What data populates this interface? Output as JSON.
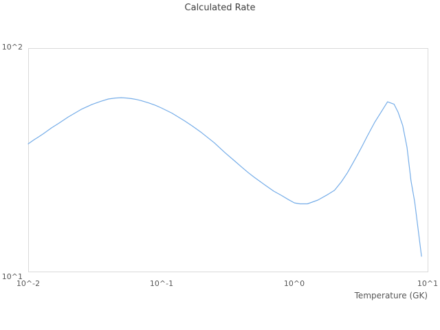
{
  "figure": {
    "title": "Calculated Rate"
  },
  "axes": {
    "x_label": "Temperature (GK)",
    "x_tick_labels": [
      "10^-2",
      "10^-1",
      "10^0",
      "10^1"
    ],
    "y_tick_labels": [
      "10^1",
      "10^2"
    ]
  },
  "colors": {
    "line": "#74ace8",
    "plot_border": "#d9d9d9",
    "tick_text": "#555555",
    "title_text": "#3d3d3d",
    "background": "#ffffff"
  },
  "chart_data": {
    "type": "line",
    "title": "Calculated Rate",
    "xlabel": "Temperature (GK)",
    "ylabel": "",
    "x_scale": "log",
    "y_scale": "log",
    "xlim": [
      0.01,
      10
    ],
    "ylim": [
      10,
      100
    ],
    "grid": false,
    "legend": "none",
    "x_ticks": [
      0.01,
      0.1,
      1,
      10
    ],
    "y_ticks": [
      10,
      100
    ],
    "series": [
      {
        "name": "calculated_rate",
        "color": "#74ace8",
        "x": [
          0.01,
          0.011,
          0.012,
          0.013,
          0.015,
          0.017,
          0.02,
          0.025,
          0.03,
          0.035,
          0.04,
          0.045,
          0.05,
          0.055,
          0.06,
          0.065,
          0.07,
          0.08,
          0.09,
          0.1,
          0.12,
          0.15,
          0.17,
          0.2,
          0.25,
          0.3,
          0.35,
          0.4,
          0.45,
          0.5,
          0.6,
          0.7,
          0.8,
          0.9,
          1.0,
          1.1,
          1.25,
          1.5,
          1.75,
          2.0,
          2.25,
          2.5,
          2.75,
          3.0,
          3.25,
          3.5,
          3.75,
          4.0,
          4.5,
          5.0,
          5.6,
          6.0,
          6.5,
          7.0,
          7.5,
          8.0,
          9.0
        ],
        "y": [
          37.3,
          38.8,
          40.1,
          41.4,
          44.0,
          46.1,
          49.2,
          53.2,
          55.9,
          57.8,
          59.2,
          59.8,
          60.0,
          59.8,
          59.4,
          58.9,
          58.3,
          56.9,
          55.5,
          54.0,
          51.2,
          47.2,
          44.9,
          41.9,
          37.7,
          34.1,
          31.5,
          29.4,
          27.7,
          26.4,
          24.4,
          22.9,
          21.9,
          21.0,
          20.3,
          20.1,
          20.1,
          20.9,
          22.0,
          23.1,
          25.2,
          27.7,
          30.6,
          33.6,
          36.8,
          40.1,
          43.3,
          46.5,
          52.0,
          57.5,
          56.1,
          51.7,
          45.0,
          36.0,
          25.5,
          20.5,
          11.7
        ]
      }
    ]
  }
}
